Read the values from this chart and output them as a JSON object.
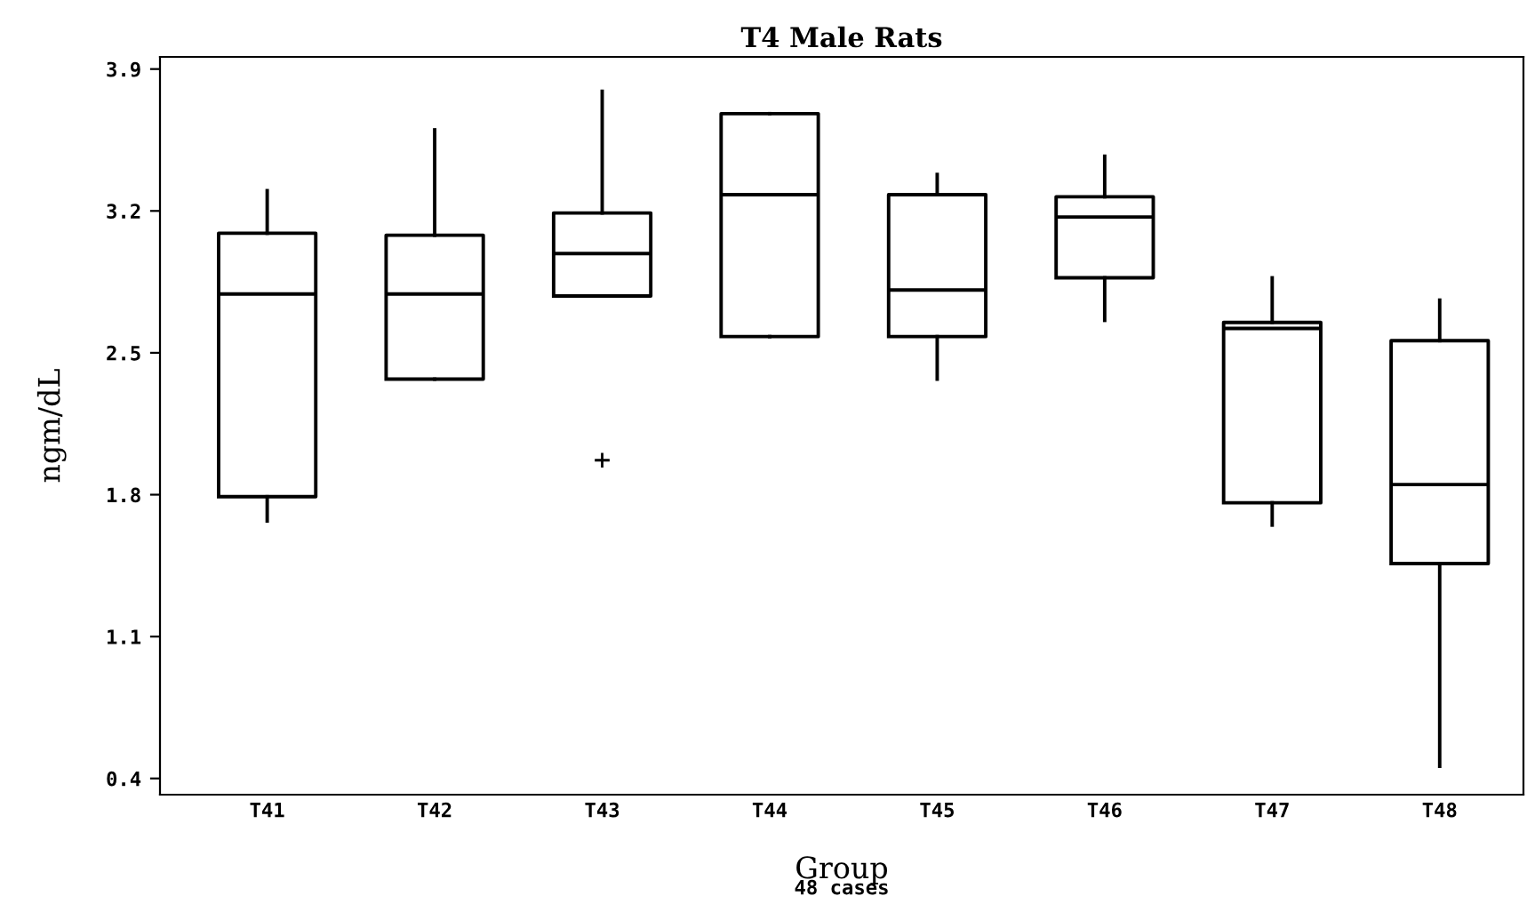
{
  "chart_data": {
    "type": "box",
    "title": "T4 Male Rats",
    "xlabel": "Group",
    "ylabel": "ngm/dL",
    "annotations": [
      "48 cases"
    ],
    "categories": [
      "T41",
      "T42",
      "T43",
      "T44",
      "T45",
      "T46",
      "T47",
      "T48"
    ],
    "boxes": [
      {
        "low": 1.67,
        "q1": 1.79,
        "median": 2.79,
        "q3": 3.09,
        "high": 3.3
      },
      {
        "low": 2.37,
        "q1": 2.37,
        "median": 2.79,
        "q3": 3.08,
        "high": 3.6
      },
      {
        "low": 2.78,
        "q1": 2.78,
        "median": 2.99,
        "q3": 3.19,
        "high": 3.79,
        "outliers": [
          1.97
        ]
      },
      {
        "low": 2.58,
        "q1": 2.58,
        "median": 3.28,
        "q3": 3.68,
        "high": 3.68
      },
      {
        "low": 2.37,
        "q1": 2.58,
        "median": 2.81,
        "q3": 3.28,
        "high": 3.38
      },
      {
        "low": 2.66,
        "q1": 2.87,
        "median": 3.17,
        "q3": 3.27,
        "high": 3.47
      },
      {
        "low": 1.65,
        "q1": 1.76,
        "median": 2.62,
        "q3": 2.65,
        "high": 2.87
      },
      {
        "low": 0.46,
        "q1": 1.46,
        "median": 1.85,
        "q3": 2.56,
        "high": 2.76
      }
    ],
    "color": "#000000",
    "ylim": [
      0.32,
      3.96
    ],
    "yticks": [
      0.4,
      1.1,
      1.8,
      2.5,
      3.2,
      3.9
    ],
    "grid": false
  }
}
